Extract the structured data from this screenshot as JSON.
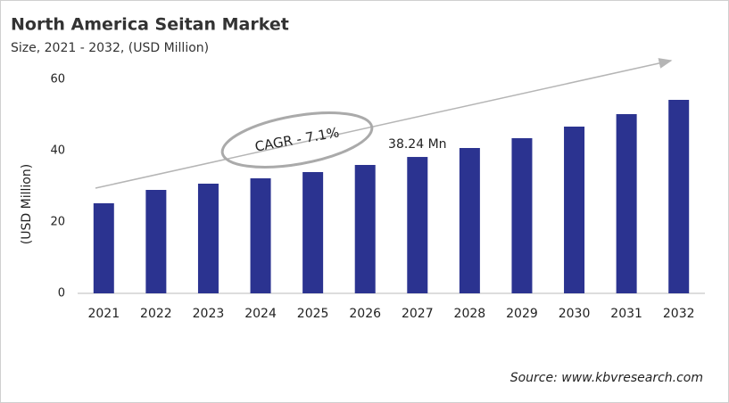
{
  "chart_data": {
    "type": "bar",
    "title": "North America Seitan Market",
    "subtitle": "Size, 2021 - 2032, (USD Million)",
    "y_label": "(USD Million)",
    "categories": [
      "2021",
      "2022",
      "2023",
      "2024",
      "2025",
      "2026",
      "2027",
      "2028",
      "2029",
      "2030",
      "2031",
      "2032"
    ],
    "values": [
      25.25,
      29,
      30.75,
      32.25,
      34,
      36,
      38.24,
      40.75,
      43.5,
      46.75,
      50.25,
      54.25
    ],
    "value_labels": [
      null,
      null,
      null,
      null,
      null,
      null,
      "38.24 Mn",
      null,
      null,
      null,
      null,
      null
    ],
    "color": "#2b3390",
    "ylim": [
      0,
      60
    ],
    "yticks": [
      0,
      20,
      40,
      60
    ],
    "grid": false,
    "annotation": "CAGR - 7.1%",
    "source": "Source: www.kbvresearch.com"
  }
}
